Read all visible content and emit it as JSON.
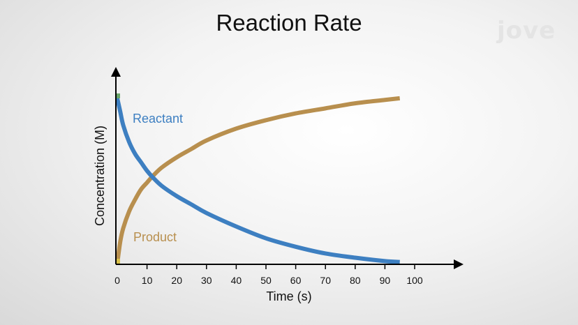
{
  "brand": {
    "logo_text": "jove"
  },
  "chart_data": {
    "type": "line",
    "title": "Reaction Rate",
    "xlabel": "Time (s)",
    "ylabel": "Concentration (M)",
    "xlim": [
      0,
      100
    ],
    "ylim": [
      0,
      1
    ],
    "x_ticks": [
      "0",
      "10",
      "20",
      "30",
      "40",
      "50",
      "60",
      "70",
      "80",
      "90",
      "100"
    ],
    "y_ticks": [],
    "grid": false,
    "series": [
      {
        "name": "Reactant",
        "color": "#3d7fc1",
        "x": [
          0,
          1,
          2,
          4,
          6,
          8,
          10,
          12,
          15,
          20,
          25,
          30,
          40,
          50,
          60,
          70,
          80,
          90,
          95
        ],
        "y": [
          0.98,
          0.9,
          0.82,
          0.72,
          0.65,
          0.6,
          0.55,
          0.51,
          0.46,
          0.4,
          0.35,
          0.3,
          0.22,
          0.15,
          0.1,
          0.06,
          0.035,
          0.015,
          0.01
        ]
      },
      {
        "name": "Product",
        "color": "#b88f4e",
        "x": [
          0,
          1,
          2,
          4,
          6,
          8,
          10,
          12,
          15,
          20,
          25,
          30,
          40,
          50,
          60,
          70,
          80,
          90,
          95
        ],
        "y": [
          0.0,
          0.13,
          0.21,
          0.31,
          0.38,
          0.44,
          0.48,
          0.52,
          0.57,
          0.63,
          0.68,
          0.73,
          0.8,
          0.85,
          0.89,
          0.92,
          0.95,
          0.97,
          0.98
        ]
      }
    ]
  }
}
